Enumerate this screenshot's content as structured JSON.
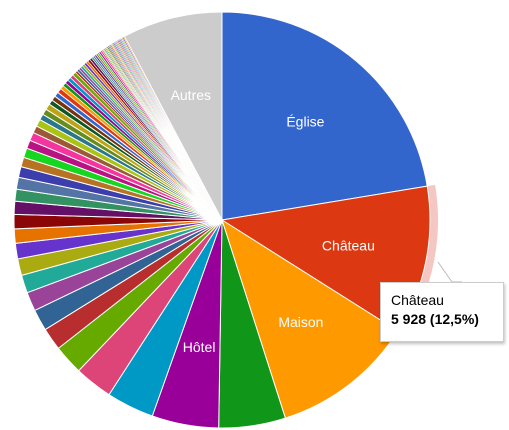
{
  "chart_data": {
    "type": "pie",
    "title": "",
    "slices": [
      {
        "label": "Église",
        "percent": 24.2,
        "color": "#3366cc",
        "show_label": true
      },
      {
        "label": "Château",
        "value": 5928,
        "percent": 12.5,
        "color": "#dc3912",
        "show_label": true,
        "highlighted": true
      },
      {
        "label": "Maison",
        "percent": 12.0,
        "color": "#ff9900",
        "show_label": true
      },
      {
        "label": "",
        "percent": 5.6,
        "color": "#109618",
        "show_label": false
      },
      {
        "label": "Hôtel",
        "percent": 5.6,
        "color": "#990099",
        "show_label": true
      },
      {
        "label": "",
        "percent": 4.0,
        "color": "#0099c6",
        "show_label": false
      },
      {
        "label": "",
        "percent": 3.2,
        "color": "#dd4477",
        "show_label": false
      },
      {
        "label": "",
        "percent": 2.5,
        "color": "#66aa00",
        "show_label": false
      },
      {
        "label": "",
        "percent": 1.9,
        "color": "#b82e2e",
        "show_label": false
      },
      {
        "label": "",
        "percent": 1.8,
        "color": "#316395",
        "show_label": false
      },
      {
        "label": "",
        "percent": 1.6,
        "color": "#994499",
        "show_label": false
      },
      {
        "label": "",
        "percent": 1.5,
        "color": "#22aa99",
        "show_label": false
      },
      {
        "label": "",
        "percent": 1.4,
        "color": "#aaaa11",
        "show_label": false
      },
      {
        "label": "",
        "percent": 1.3,
        "color": "#6633cc",
        "show_label": false
      },
      {
        "label": "",
        "percent": 1.2,
        "color": "#e67300",
        "show_label": false
      },
      {
        "label": "",
        "percent": 1.2,
        "color": "#8b0707",
        "show_label": false
      },
      {
        "label": "",
        "percent": 1.1,
        "color": "#651067",
        "show_label": false
      },
      {
        "label": "",
        "percent": 1.0,
        "color": "#329262",
        "show_label": false
      },
      {
        "label": "",
        "percent": 1.0,
        "color": "#5574a6",
        "show_label": false
      },
      {
        "label": "",
        "percent": 0.9,
        "color": "#3b3eac",
        "show_label": false
      },
      {
        "label": "",
        "percent": 0.8,
        "color": "#b77322",
        "show_label": false
      },
      {
        "label": "",
        "percent": 0.8,
        "color": "#16d620",
        "show_label": false
      },
      {
        "label": "",
        "percent": 0.7,
        "color": "#b91383",
        "show_label": false
      },
      {
        "label": "",
        "percent": 0.7,
        "color": "#f4359e",
        "show_label": false
      },
      {
        "label": "",
        "percent": 0.6,
        "color": "#9c5935",
        "show_label": false
      },
      {
        "label": "",
        "percent": 0.6,
        "color": "#a9c413",
        "show_label": false
      },
      {
        "label": "",
        "percent": 0.5,
        "color": "#2a778d",
        "show_label": false
      },
      {
        "label": "",
        "percent": 0.5,
        "color": "#668d1c",
        "show_label": false
      },
      {
        "label": "",
        "percent": 0.5,
        "color": "#bea413",
        "show_label": false
      },
      {
        "label": "",
        "percent": 0.4,
        "color": "#0c5922",
        "show_label": false
      },
      {
        "label": "",
        "percent": 0.4,
        "color": "#743411",
        "show_label": false
      },
      {
        "label": "",
        "percent": 0.4,
        "color": "#3366cc",
        "show_label": false
      },
      {
        "label": "",
        "percent": 0.4,
        "color": "#dc3912",
        "show_label": false
      },
      {
        "label": "",
        "percent": 0.3,
        "color": "#ff9900",
        "show_label": false
      },
      {
        "label": "",
        "percent": 0.3,
        "color": "#109618",
        "show_label": false
      },
      {
        "label": "",
        "percent": 0.3,
        "color": "#990099",
        "show_label": false
      },
      {
        "label": "",
        "percent": 0.3,
        "color": "#0099c6",
        "show_label": false
      },
      {
        "label": "",
        "percent": 0.3,
        "color": "#dd4477",
        "show_label": false
      },
      {
        "label": "",
        "percent": 0.3,
        "color": "#66aa00",
        "show_label": false
      },
      {
        "label": "",
        "percent": 0.2,
        "color": "#b82e2e",
        "show_label": false
      },
      {
        "label": "",
        "percent": 0.2,
        "color": "#316395",
        "show_label": false
      },
      {
        "label": "",
        "percent": 0.2,
        "color": "#994499",
        "show_label": false
      },
      {
        "label": "",
        "percent": 0.2,
        "color": "#22aa99",
        "show_label": false
      },
      {
        "label": "",
        "percent": 0.2,
        "color": "#aaaa11",
        "show_label": false
      },
      {
        "label": "",
        "percent": 0.2,
        "color": "#6633cc",
        "show_label": false
      },
      {
        "label": "",
        "percent": 0.2,
        "color": "#e67300",
        "show_label": false
      },
      {
        "label": "",
        "percent": 0.2,
        "color": "#8b0707",
        "show_label": false
      },
      {
        "label": "",
        "percent": 0.2,
        "color": "#651067",
        "show_label": false
      },
      {
        "label": "",
        "percent": 0.15,
        "color": "#329262",
        "show_label": false
      },
      {
        "label": "",
        "percent": 0.15,
        "color": "#5574a6",
        "show_label": false
      },
      {
        "label": "",
        "percent": 0.15,
        "color": "#3b3eac",
        "show_label": false
      },
      {
        "label": "",
        "percent": 0.15,
        "color": "#b77322",
        "show_label": false
      },
      {
        "label": "",
        "percent": 0.15,
        "color": "#16d620",
        "show_label": false
      },
      {
        "label": "",
        "percent": 0.15,
        "color": "#b91383",
        "show_label": false
      },
      {
        "label": "",
        "percent": 0.15,
        "color": "#f4359e",
        "show_label": false
      },
      {
        "label": "",
        "percent": 0.1,
        "color": "#9c5935",
        "show_label": false
      },
      {
        "label": "",
        "percent": 0.1,
        "color": "#a9c413",
        "show_label": false
      },
      {
        "label": "",
        "percent": 0.1,
        "color": "#2a778d",
        "show_label": false
      },
      {
        "label": "",
        "percent": 0.1,
        "color": "#668d1c",
        "show_label": false
      },
      {
        "label": "",
        "percent": 0.1,
        "color": "#bea413",
        "show_label": false
      },
      {
        "label": "",
        "percent": 0.1,
        "color": "#0c5922",
        "show_label": false
      },
      {
        "label": "",
        "percent": 0.1,
        "color": "#743411",
        "show_label": false
      },
      {
        "label": "",
        "percent": 0.1,
        "color": "#3366cc",
        "show_label": false
      },
      {
        "label": "",
        "percent": 0.1,
        "color": "#dc3912",
        "show_label": false
      },
      {
        "label": "",
        "percent": 0.1,
        "color": "#ff9900",
        "show_label": false
      },
      {
        "label": "",
        "percent": 0.1,
        "color": "#109618",
        "show_label": false
      },
      {
        "label": "",
        "percent": 0.1,
        "color": "#990099",
        "show_label": false
      },
      {
        "label": "",
        "percent": 0.1,
        "color": "#0099c6",
        "show_label": false
      },
      {
        "label": "",
        "percent": 0.1,
        "color": "#dd4477",
        "show_label": false
      },
      {
        "label": "",
        "percent": 0.1,
        "color": "#66aa00",
        "show_label": false
      },
      {
        "label": "",
        "percent": 0.1,
        "color": "#b82e2e",
        "show_label": false
      },
      {
        "label": "",
        "percent": 0.1,
        "color": "#316395",
        "show_label": false
      },
      {
        "label": "",
        "percent": 0.1,
        "color": "#994499",
        "show_label": false
      },
      {
        "label": "",
        "percent": 0.1,
        "color": "#22aa99",
        "show_label": false
      },
      {
        "label": "",
        "percent": 0.1,
        "color": "#aaaa11",
        "show_label": false
      },
      {
        "label": "",
        "percent": 0.1,
        "color": "#6633cc",
        "show_label": false
      },
      {
        "label": "",
        "percent": 0.1,
        "color": "#e67300",
        "show_label": false
      },
      {
        "label": "Autres",
        "percent": 8.4,
        "color": "#cccccc",
        "show_label": true
      }
    ],
    "start_angle_deg": 0,
    "slice_label_color": "#ffffff",
    "highlight_color": "#f4c7c3"
  },
  "tooltip": {
    "title": "Château",
    "value_text": "5 928 (12,5%)"
  }
}
